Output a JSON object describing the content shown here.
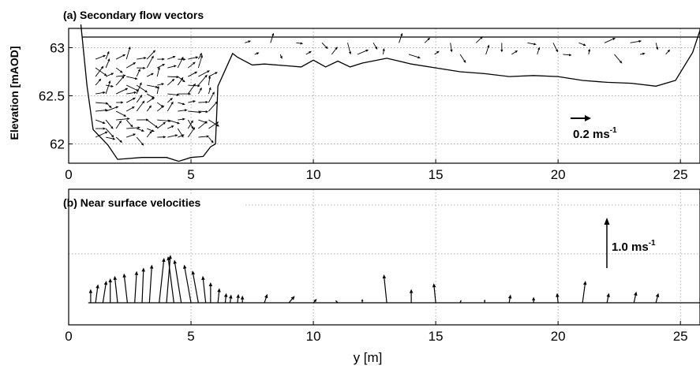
{
  "chart_data": [
    {
      "id": "panel-a",
      "type": "quiver",
      "title": "(a) Secondary flow vectors",
      "xlabel": "",
      "ylabel": "Elevation [mAOD]",
      "xlim": [
        0,
        25.8
      ],
      "ylim": [
        61.8,
        63.2
      ],
      "xticks": [
        0,
        5,
        10,
        15,
        20,
        25
      ],
      "yticks": [
        62,
        62.5,
        63
      ],
      "ytick_labels": [
        "62",
        "62.5",
        "63"
      ],
      "grid": true,
      "water_surface": 63.11,
      "bed_profile": [
        [
          0.5,
          63.24
        ],
        [
          0.75,
          62.6
        ],
        [
          1.0,
          62.15
        ],
        [
          1.6,
          61.99
        ],
        [
          2.0,
          61.84
        ],
        [
          3.0,
          61.86
        ],
        [
          4.0,
          61.86
        ],
        [
          4.5,
          61.82
        ],
        [
          5.0,
          61.86
        ],
        [
          5.5,
          61.87
        ],
        [
          5.8,
          61.97
        ],
        [
          6.0,
          62.0
        ],
        [
          6.1,
          62.6
        ],
        [
          6.7,
          62.94
        ],
        [
          6.9,
          62.9
        ],
        [
          7.5,
          62.82
        ],
        [
          8.0,
          62.83
        ],
        [
          9.0,
          62.81
        ],
        [
          9.5,
          62.8
        ],
        [
          10.0,
          62.87
        ],
        [
          10.5,
          62.8
        ],
        [
          11.0,
          62.86
        ],
        [
          11.5,
          62.8
        ],
        [
          12.0,
          62.84
        ],
        [
          13.0,
          62.89
        ],
        [
          13.5,
          62.86
        ],
        [
          14.0,
          62.83
        ],
        [
          15.0,
          62.79
        ],
        [
          16.0,
          62.75
        ],
        [
          17.0,
          62.73
        ],
        [
          18.0,
          62.7
        ],
        [
          19.0,
          62.71
        ],
        [
          20.0,
          62.7
        ],
        [
          21.0,
          62.66
        ],
        [
          22.0,
          62.64
        ],
        [
          23.0,
          62.63
        ],
        [
          24.0,
          62.6
        ],
        [
          24.8,
          62.66
        ],
        [
          25.5,
          62.95
        ],
        [
          25.8,
          63.18
        ]
      ],
      "scale_arrow": {
        "value": 0.2,
        "label": "0.2 ms",
        "unit_superscript": "-1"
      }
    },
    {
      "id": "panel-b",
      "type": "quiver",
      "title": "(b) Near surface velocities",
      "xlabel": "y [m]",
      "ylabel": "",
      "xlim": [
        0,
        25.8
      ],
      "xticks": [
        0,
        5,
        10,
        15,
        20,
        25
      ],
      "grid": true,
      "baseline": 0,
      "vectors": [
        {
          "x": 0.9,
          "u": 0.0,
          "v": 0.28
        },
        {
          "x": 1.1,
          "u": 0.05,
          "v": 0.38
        },
        {
          "x": 1.4,
          "u": 0.07,
          "v": 0.45
        },
        {
          "x": 1.7,
          "u": 0.0,
          "v": 0.5
        },
        {
          "x": 2.0,
          "u": -0.06,
          "v": 0.55
        },
        {
          "x": 2.4,
          "u": -0.07,
          "v": 0.6
        },
        {
          "x": 2.7,
          "u": 0.04,
          "v": 0.65
        },
        {
          "x": 3.0,
          "u": 0.03,
          "v": 0.72
        },
        {
          "x": 3.3,
          "u": 0.05,
          "v": 0.78
        },
        {
          "x": 3.7,
          "u": 0.1,
          "v": 0.92
        },
        {
          "x": 4.0,
          "u": 0.08,
          "v": 0.98
        },
        {
          "x": 4.3,
          "u": -0.12,
          "v": 0.95
        },
        {
          "x": 4.6,
          "u": -0.14,
          "v": 0.88
        },
        {
          "x": 5.0,
          "u": -0.14,
          "v": 0.78
        },
        {
          "x": 5.3,
          "u": -0.12,
          "v": 0.66
        },
        {
          "x": 5.6,
          "u": -0.06,
          "v": 0.55
        },
        {
          "x": 5.8,
          "u": 0.0,
          "v": 0.42
        },
        {
          "x": 6.1,
          "u": 0.03,
          "v": 0.3
        },
        {
          "x": 6.4,
          "u": 0.02,
          "v": 0.2
        },
        {
          "x": 6.6,
          "u": 0.02,
          "v": 0.17
        },
        {
          "x": 6.9,
          "u": 0.02,
          "v": 0.18
        },
        {
          "x": 7.1,
          "u": 0.0,
          "v": 0.15
        },
        {
          "x": 8.0,
          "u": 0.06,
          "v": 0.18
        },
        {
          "x": 9.0,
          "u": 0.12,
          "v": 0.14
        },
        {
          "x": 10.0,
          "u": 0.07,
          "v": 0.08
        },
        {
          "x": 11.0,
          "u": -0.05,
          "v": 0.05
        },
        {
          "x": 12.0,
          "u": 0.0,
          "v": 0.08
        },
        {
          "x": 13.0,
          "u": -0.06,
          "v": 0.58
        },
        {
          "x": 14.0,
          "u": 0.0,
          "v": 0.28
        },
        {
          "x": 15.0,
          "u": -0.04,
          "v": 0.4
        },
        {
          "x": 16.0,
          "u": 0.02,
          "v": 0.06
        },
        {
          "x": 17.0,
          "u": 0.0,
          "v": 0.07
        },
        {
          "x": 18.0,
          "u": 0.03,
          "v": 0.17
        },
        {
          "x": 19.0,
          "u": 0.0,
          "v": 0.12
        },
        {
          "x": 20.0,
          "u": -0.02,
          "v": 0.2
        },
        {
          "x": 21.0,
          "u": 0.06,
          "v": 0.45
        },
        {
          "x": 22.0,
          "u": 0.04,
          "v": 0.2
        },
        {
          "x": 23.1,
          "u": 0.05,
          "v": 0.23
        },
        {
          "x": 24.0,
          "u": 0.05,
          "v": 0.2
        }
      ],
      "scale_arrow": {
        "value": 1.0,
        "label": "1.0 ms",
        "unit_superscript": "-1"
      }
    }
  ]
}
